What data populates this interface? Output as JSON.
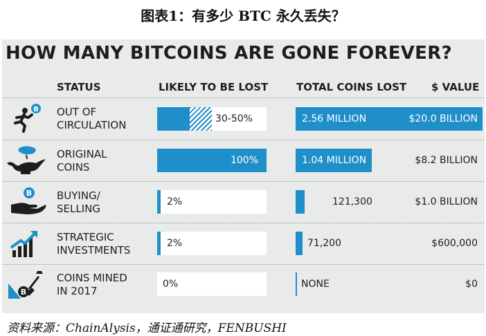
{
  "caption": "图表1：有多少 BTC 永久丢失？",
  "chart_data": {
    "type": "table",
    "title": "HOW MANY BITCOINS ARE GONE FOREVER?",
    "columns": [
      "STATUS",
      "LIKELY TO BE LOST",
      "TOTAL COINS LOST",
      "$ VALUE"
    ],
    "rows": [
      {
        "status": "OUT OF\nCIRCULATION",
        "likely_lost": "30-50%",
        "likely_lost_min": 0.3,
        "likely_lost_max": 0.5,
        "coins_lost": "2.56 MILLION",
        "coins_lost_value": 2560000,
        "value": "$20.0 BILLION"
      },
      {
        "status": "ORIGINAL\nCOINS",
        "likely_lost": "100%",
        "likely_lost_min": 1.0,
        "likely_lost_max": 1.0,
        "coins_lost": "1.04 MILLION",
        "coins_lost_value": 1040000,
        "value": "$8.2 BILLION"
      },
      {
        "status": "BUYING/\nSELLING",
        "likely_lost": "2%",
        "likely_lost_min": 0.02,
        "likely_lost_max": 0.02,
        "coins_lost": "121,300",
        "coins_lost_value": 121300,
        "value": "$1.0 BILLION"
      },
      {
        "status": "STRATEGIC\nINVESTMENTS",
        "likely_lost": "2%",
        "likely_lost_min": 0.02,
        "likely_lost_max": 0.02,
        "coins_lost": "71,200",
        "coins_lost_value": 71200,
        "value": "$600,000"
      },
      {
        "status": "COINS MINED\nIN 2017",
        "likely_lost": "0%",
        "likely_lost_min": 0.0,
        "likely_lost_max": 0.0,
        "coins_lost": "NONE",
        "coins_lost_value": 0,
        "value": "$0"
      }
    ],
    "colors": {
      "bar": "#1f8fc9",
      "panel": "#e9ebea"
    }
  },
  "icons": [
    "running-man-coin-icon",
    "genie-lamp-icon",
    "hand-coin-icon",
    "growth-chart-icon",
    "shovel-coin-icon"
  ],
  "source": "资料来源：ChainAlysis，通证通研究，FENBUSHI"
}
